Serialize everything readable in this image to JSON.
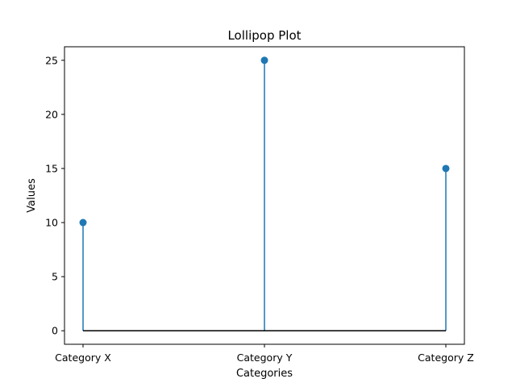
{
  "chart_data": {
    "type": "lollipop",
    "title": "Lollipop Plot",
    "xlabel": "Categories",
    "ylabel": "Values",
    "categories": [
      "Category X",
      "Category Y",
      "Category Z"
    ],
    "values": [
      10,
      25,
      15
    ],
    "ylim": [
      -1.25,
      26.25
    ],
    "yticks": [
      0,
      5,
      10,
      15,
      20,
      25
    ],
    "grid": false,
    "baseline": 0,
    "colors": {
      "stem": "#1f77b4",
      "marker": "#1f77b4",
      "baseline": "#000000"
    }
  }
}
